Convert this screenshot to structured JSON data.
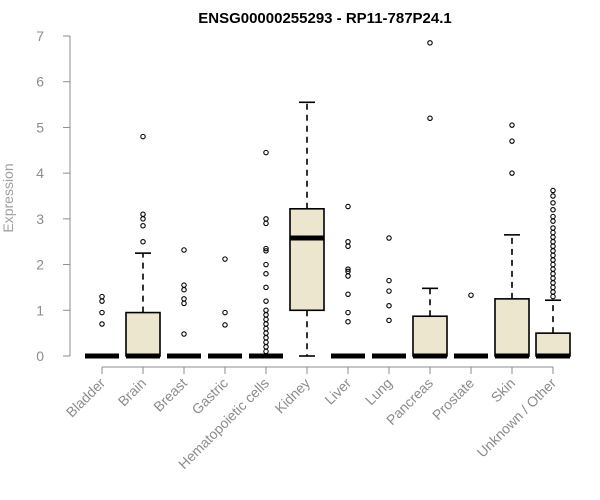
{
  "chart_data": {
    "type": "box",
    "title": "ENSG00000255293 - RP11-787P24.1",
    "ylabel": "Expression",
    "xlabel": "",
    "ylim": [
      0,
      7
    ],
    "yticks": [
      0,
      1,
      2,
      3,
      4,
      5,
      6,
      7
    ],
    "grid": false,
    "colors": {
      "box_fill": "#ede6cf",
      "box_stroke": "#000000",
      "axis": "#8c8c8c"
    },
    "categories": [
      "Bladder",
      "Brain",
      "Breast",
      "Gastric",
      "Hematopoietic cells",
      "Kidney",
      "Liver",
      "Lung",
      "Pancreas",
      "Prostate",
      "Skin",
      "Unknown / Other"
    ],
    "boxes": [
      {
        "q1": 0,
        "median": 0,
        "q3": 0,
        "low": 0,
        "high": 0,
        "outliers": [
          0.7,
          0.95,
          1.2,
          1.3
        ]
      },
      {
        "q1": 0,
        "median": 0,
        "q3": 0.95,
        "low": 0,
        "high": 2.25,
        "outliers": [
          2.5,
          2.85,
          3.0,
          3.1,
          4.8
        ]
      },
      {
        "q1": 0,
        "median": 0,
        "q3": 0,
        "low": 0,
        "high": 0,
        "outliers": [
          0.48,
          1.15,
          1.25,
          1.45,
          1.55,
          2.32
        ]
      },
      {
        "q1": 0,
        "median": 0,
        "q3": 0,
        "low": 0,
        "high": 0,
        "outliers": [
          0.68,
          0.95,
          2.12
        ]
      },
      {
        "q1": 0,
        "median": 0,
        "q3": 0,
        "low": 0,
        "high": 0,
        "outliers": [
          0.1,
          0.2,
          0.3,
          0.4,
          0.5,
          0.6,
          0.7,
          0.8,
          0.9,
          1.0,
          1.2,
          1.5,
          1.8,
          2.0,
          2.3,
          2.35,
          2.9,
          3.0,
          4.45
        ]
      },
      {
        "q1": 1.0,
        "median": 2.58,
        "q3": 3.22,
        "low": 0,
        "high": 5.55,
        "outliers": []
      },
      {
        "q1": 0,
        "median": 0,
        "q3": 0,
        "low": 0,
        "high": 0,
        "outliers": [
          0.75,
          0.95,
          1.35,
          1.75,
          1.85,
          1.9,
          2.4,
          2.5,
          3.27
        ]
      },
      {
        "q1": 0,
        "median": 0,
        "q3": 0,
        "low": 0,
        "high": 0,
        "outliers": [
          0.78,
          1.1,
          1.42,
          1.65,
          2.58
        ]
      },
      {
        "q1": 0,
        "median": 0,
        "q3": 0.87,
        "low": 0,
        "high": 1.48,
        "outliers": [
          5.2,
          6.85
        ]
      },
      {
        "q1": 0,
        "median": 0,
        "q3": 0,
        "low": 0,
        "high": 0,
        "outliers": [
          1.33
        ]
      },
      {
        "q1": 0,
        "median": 0,
        "q3": 1.25,
        "low": 0,
        "high": 2.65,
        "outliers": [
          4.0,
          4.7,
          5.05
        ]
      },
      {
        "q1": 0,
        "median": 0,
        "q3": 0.5,
        "low": 0,
        "high": 1.22,
        "outliers": [
          1.3,
          1.4,
          1.5,
          1.6,
          1.7,
          1.8,
          1.9,
          2.0,
          2.1,
          2.2,
          2.3,
          2.4,
          2.5,
          2.6,
          2.7,
          2.8,
          2.95,
          3.05,
          3.2,
          3.35,
          3.5,
          3.62
        ]
      }
    ]
  }
}
